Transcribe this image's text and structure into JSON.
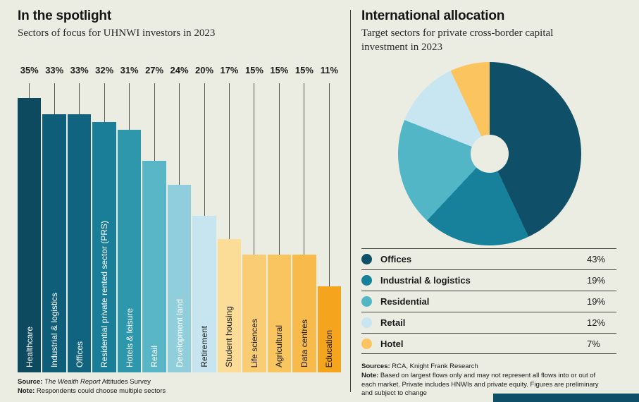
{
  "colors": {
    "background": "#ECEDE2",
    "footer_band": "#0F4F68",
    "leader_line": "#55564F",
    "divider": "#44443E"
  },
  "left_panel": {
    "source": {
      "label": "Source:",
      "italic": " The Wealth Report",
      "rest": " Attitudes Survey"
    },
    "note": {
      "label": "Note:",
      "text": " Respondents could choose multiple sectors"
    }
  },
  "right_panel": {
    "sources": {
      "label": "Sources:",
      "text": " RCA, Knight Frank Research"
    },
    "note": {
      "label": "Note:",
      "text": " Based on largest flows only and may not represent all flows into or out of each market. Private includes HNWIs and private equity. Figures are preliminary and subject to change"
    }
  },
  "chart_data": [
    {
      "type": "bar",
      "title": "In the spotlight",
      "subtitle": "Sectors of focus for UHNWI investors in 2023",
      "categories": [
        "Healthcare",
        "Industrial & logistics",
        "Offices",
        "Residential private rented sector (PRS)",
        "Hotels & leisure",
        "Retail",
        "Development land",
        "Retirement",
        "Student housing",
        "Life sciences",
        "Agricultural",
        "Data centres",
        "Education"
      ],
      "values": [
        35,
        33,
        33,
        32,
        31,
        27,
        24,
        20,
        17,
        15,
        15,
        15,
        11
      ],
      "value_labels": [
        "35%",
        "33%",
        "33%",
        "32%",
        "31%",
        "27%",
        "24%",
        "20%",
        "17%",
        "15%",
        "15%",
        "15%",
        "11%"
      ],
      "colors": [
        "#0E4A5F",
        "#0F5E79",
        "#116480",
        "#1A7E99",
        "#2F97AC",
        "#58B6C6",
        "#90CEDB",
        "#C7E5F0",
        "#FBDD98",
        "#FACD74",
        "#F9C55F",
        "#F8BB4B",
        "#F4A41D"
      ],
      "label_colors": [
        "#FFFFFF",
        "#FFFFFF",
        "#FFFFFF",
        "#FFFFFF",
        "#FFFFFF",
        "#FFFFFF",
        "#FFFFFF",
        "#1A1A1A",
        "#1A1A1A",
        "#1A1A1A",
        "#1A1A1A",
        "#1A1A1A",
        "#1A1A1A"
      ],
      "xlabel": "",
      "ylabel": "",
      "ylim": [
        0,
        35
      ],
      "grid": false,
      "value_suffix": "%"
    },
    {
      "type": "pie",
      "title": "International allocation",
      "subtitle": "Target sectors for private cross-border capital investment in 2023",
      "categories": [
        "Offices",
        "Industrial & logistics",
        "Residential",
        "Retail",
        "Hotel"
      ],
      "values": [
        43,
        19,
        19,
        12,
        7
      ],
      "value_labels": [
        "43%",
        "19%",
        "19%",
        "12%",
        "7%"
      ],
      "colors": [
        "#0F4F68",
        "#17819C",
        "#52B6C7",
        "#C7E6F2",
        "#FBC45F"
      ],
      "donut": true,
      "start_angle_deg": 0,
      "direction": "clockwise",
      "legend_position": "bottom-table"
    }
  ]
}
